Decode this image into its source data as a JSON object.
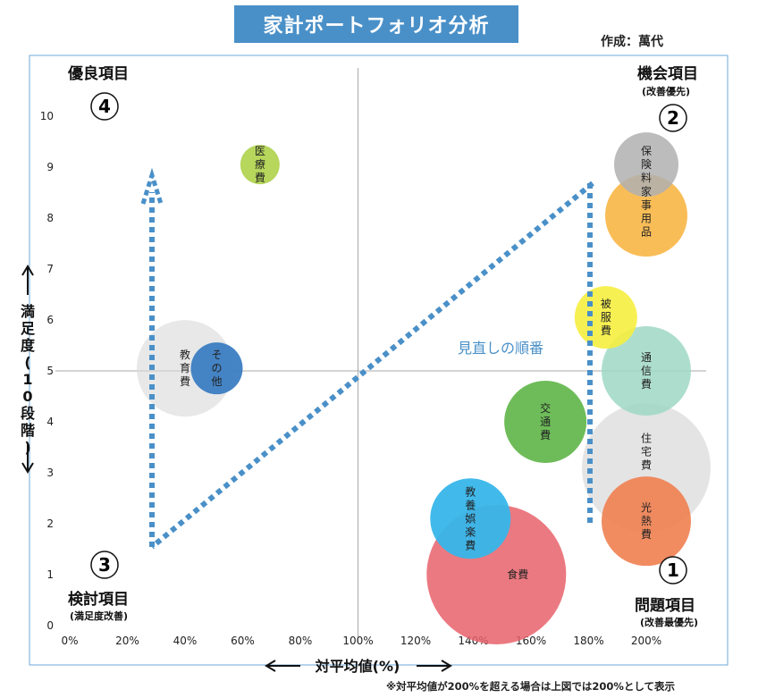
{
  "header": {
    "title": "家計ポートフォリオ分析",
    "author": "作成：萬代"
  },
  "footnote": "※対平均値が200%を超える場合は上図では200%として表示",
  "quadrants": {
    "top_left": {
      "title": "優良項目",
      "number": "4",
      "sub": ""
    },
    "top_right": {
      "title": "機会項目",
      "number": "2",
      "sub": "(改善優先)"
    },
    "bottom_left": {
      "title": "検討項目",
      "number": "3",
      "sub": "(満足度改善)"
    },
    "bottom_right": {
      "title": "問題項目",
      "number": "1",
      "sub": "(改善最優先)"
    }
  },
  "review_label": "見直しの順番",
  "colors": {
    "axis_box": "#6fa8d8",
    "arrow": "#4a90c8"
  },
  "chart_data": {
    "type": "scatter",
    "variant": "bubble",
    "xlabel": "対平均値(%)",
    "ylabel": "満足度(10段階)",
    "xlim": [
      0,
      200
    ],
    "ylim": [
      0,
      10
    ],
    "x_ticks": [
      "0%",
      "20%",
      "40%",
      "60%",
      "80%",
      "100%",
      "120%",
      "140%",
      "160%",
      "180%",
      "200%"
    ],
    "y_ticks": [
      "0",
      "1",
      "2",
      "3",
      "4",
      "5",
      "6",
      "7",
      "8",
      "9",
      "10"
    ],
    "reference_lines": {
      "x": 100,
      "y": 5
    },
    "bubbles": [
      {
        "label": "住宅費",
        "x": 200,
        "y": 3.1,
        "size": 72,
        "color": "#d9d9d9",
        "opacity": 0.7,
        "vertical": true
      },
      {
        "label": "食費",
        "x": 148,
        "y": 1.0,
        "size": 78,
        "color": "#e8616b",
        "opacity": 0.85,
        "vertical": false
      },
      {
        "label": "教育費",
        "x": 40,
        "y": 5.05,
        "size": 54,
        "color": "#d9d9d9",
        "opacity": 0.6,
        "vertical": true
      },
      {
        "label": "通信費",
        "x": 200,
        "y": 5.0,
        "size": 50,
        "color": "#9fd8c4",
        "opacity": 0.85,
        "vertical": true
      },
      {
        "label": "交通費",
        "x": 165,
        "y": 4.0,
        "size": 46,
        "color": "#66b850",
        "opacity": 0.95,
        "vertical": true
      },
      {
        "label": "家事用品",
        "x": 200,
        "y": 8.05,
        "size": 46,
        "color": "#f8b646",
        "opacity": 0.9,
        "vertical": true
      },
      {
        "label": "光熱費",
        "x": 200,
        "y": 2.05,
        "size": 50,
        "color": "#f07f50",
        "opacity": 0.9,
        "vertical": true
      },
      {
        "label": "教養娯楽費",
        "x": 139,
        "y": 2.1,
        "size": 45,
        "color": "#37b6ea",
        "opacity": 0.95,
        "vertical": true
      },
      {
        "label": "保険料",
        "x": 200,
        "y": 9.05,
        "size": 36,
        "color": "#b0b0b0",
        "opacity": 0.85,
        "vertical": true
      },
      {
        "label": "被服費",
        "x": 186,
        "y": 6.05,
        "size": 35,
        "color": "#f6ee3f",
        "opacity": 0.9,
        "vertical": true
      },
      {
        "label": "その他",
        "x": 51,
        "y": 5.05,
        "size": 29,
        "color": "#3b7dc2",
        "opacity": 0.95,
        "vertical": true
      },
      {
        "label": "医療費",
        "x": 66,
        "y": 9.05,
        "size": 22,
        "color": "#b2d453",
        "opacity": 0.95,
        "vertical": true
      }
    ]
  }
}
